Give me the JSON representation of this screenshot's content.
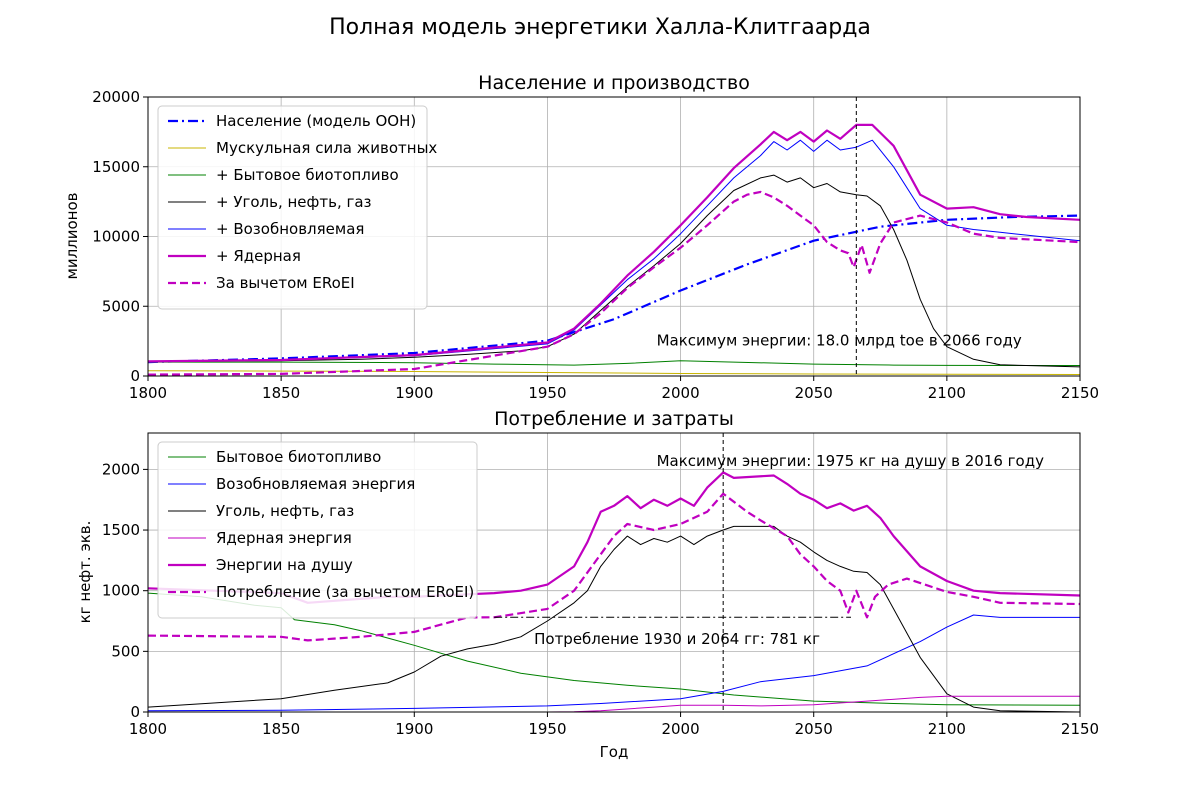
{
  "figure_title": "Полная модель энергетики Халла-Клитгаарда",
  "chart_data": [
    {
      "type": "line",
      "title": "Население и производство",
      "xlabel": "",
      "ylabel": "миллионов",
      "xlim": [
        1800,
        2150
      ],
      "ylim": [
        0,
        20000
      ],
      "xticks": [
        1800,
        1850,
        1900,
        1950,
        2000,
        2050,
        2100,
        2150
      ],
      "yticks": [
        0,
        5000,
        10000,
        15000,
        20000
      ],
      "grid": true,
      "legend_position": "top-left",
      "vline_x": 2066,
      "annotation": {
        "text": "Максимум энергии: 18.0 млрд toe в 2066 году",
        "x": 1991,
        "y": 2200
      },
      "series": [
        {
          "name": "Население (модель ООН)",
          "color": "#0000ff",
          "style": "dashdot",
          "width": 2.2,
          "x": [
            1800,
            1850,
            1900,
            1950,
            1975,
            2000,
            2025,
            2050,
            2075,
            2100,
            2125,
            2150
          ],
          "y": [
            1000,
            1260,
            1650,
            2530,
            4070,
            6130,
            8000,
            9700,
            10700,
            11200,
            11400,
            11500
          ]
        },
        {
          "name": "Мускульная сила животных",
          "color": "#c8b400",
          "style": "solid",
          "width": 1,
          "x": [
            1800,
            1900,
            1950,
            2000,
            2050,
            2100,
            2150
          ],
          "y": [
            380,
            320,
            250,
            180,
            140,
            120,
            110
          ]
        },
        {
          "name": "+ Бытовое биотопливо",
          "color": "#008000",
          "style": "solid",
          "width": 1,
          "x": [
            1800,
            1850,
            1900,
            1930,
            1960,
            1980,
            2000,
            2020,
            2050,
            2080,
            2100,
            2150
          ],
          "y": [
            1000,
            1000,
            950,
            850,
            780,
            900,
            1100,
            1000,
            850,
            780,
            760,
            750
          ]
        },
        {
          "name": "+ Уголь, нефть, газ",
          "color": "#000000",
          "style": "solid",
          "width": 1,
          "x": [
            1800,
            1850,
            1880,
            1900,
            1920,
            1940,
            1950,
            1960,
            1970,
            1980,
            1990,
            2000,
            2010,
            2020,
            2030,
            2035,
            2040,
            2045,
            2050,
            2055,
            2060,
            2066,
            2070,
            2075,
            2080,
            2085,
            2090,
            2095,
            2100,
            2110,
            2120,
            2150
          ],
          "y": [
            1030,
            1100,
            1200,
            1350,
            1550,
            1800,
            2100,
            3000,
            4700,
            6400,
            7900,
            9500,
            11500,
            13300,
            14200,
            14400,
            13900,
            14200,
            13500,
            13800,
            13200,
            13000,
            12900,
            12200,
            10500,
            8300,
            5500,
            3400,
            2100,
            1200,
            800,
            650
          ]
        },
        {
          "name": "+ Возобновляемая",
          "color": "#0000ff",
          "style": "solid",
          "width": 1,
          "x": [
            1800,
            1850,
            1900,
            1950,
            1960,
            1970,
            1980,
            1990,
            2000,
            2010,
            2020,
            2030,
            2035,
            2040,
            2045,
            2050,
            2055,
            2060,
            2066,
            2072,
            2080,
            2090,
            2100,
            2110,
            2120,
            2130,
            2150
          ],
          "y": [
            1050,
            1150,
            1450,
            2300,
            3300,
            5100,
            6900,
            8400,
            10200,
            12200,
            14200,
            15800,
            16800,
            16200,
            16900,
            16100,
            16900,
            16200,
            16400,
            16900,
            15000,
            12000,
            10800,
            10500,
            10300,
            10100,
            9700
          ]
        },
        {
          "name": "+ Ядерная",
          "color": "#c000c0",
          "style": "solid",
          "width": 2.2,
          "x": [
            1800,
            1850,
            1900,
            1950,
            1960,
            1970,
            1980,
            1990,
            2000,
            2010,
            2020,
            2030,
            2035,
            2040,
            2045,
            2050,
            2055,
            2060,
            2066,
            2072,
            2080,
            2090,
            2100,
            2110,
            2120,
            2130,
            2150
          ],
          "y": [
            1050,
            1150,
            1500,
            2400,
            3400,
            5200,
            7200,
            8900,
            10800,
            12800,
            14900,
            16600,
            17500,
            16900,
            17500,
            16800,
            17600,
            17000,
            18000,
            18000,
            16500,
            13000,
            12000,
            12100,
            11600,
            11400,
            11200
          ]
        },
        {
          "name": "За вычетом ERoEI",
          "color": "#c000c0",
          "style": "dashed",
          "width": 2.2,
          "x": [
            1800,
            1850,
            1900,
            1950,
            1960,
            1970,
            1980,
            1990,
            2000,
            2010,
            2020,
            2025,
            2030,
            2035,
            2040,
            2045,
            2050,
            2055,
            2060,
            2063,
            2065,
            2068,
            2071,
            2075,
            2080,
            2090,
            2100,
            2110,
            2120,
            2130,
            2150
          ],
          "y": [
            100,
            150,
            500,
            2100,
            3000,
            4500,
            6300,
            7800,
            9200,
            10800,
            12500,
            13000,
            13200,
            12800,
            12200,
            11500,
            10800,
            9600,
            9000,
            8800,
            7800,
            9400,
            7400,
            9500,
            11000,
            11500,
            11000,
            10200,
            9900,
            9800,
            9600
          ]
        }
      ]
    },
    {
      "type": "line",
      "title": "Потребление и затраты",
      "xlabel": "Год",
      "ylabel": "кг нефт. экв.",
      "xlim": [
        1800,
        2150
      ],
      "ylim": [
        0,
        2300
      ],
      "xticks": [
        1800,
        1850,
        1900,
        1950,
        2000,
        2050,
        2100,
        2150
      ],
      "yticks": [
        0,
        500,
        1000,
        1500,
        2000
      ],
      "grid": true,
      "legend_position": "top-left",
      "vline_x": 2016,
      "hline": {
        "y": 781,
        "x0": 1930,
        "x1": 2064
      },
      "annotation": {
        "text": "Максимум энергии: 1975 кг на душу в 2016 году",
        "x": 1991,
        "y": 2030
      },
      "annotation2": {
        "text": "Потребление 1930 и 2064 гг: 781 кг",
        "x": 1945,
        "y": 560
      },
      "series": [
        {
          "name": "Бытовое биотопливо",
          "color": "#008000",
          "style": "solid",
          "width": 1,
          "x": [
            1800,
            1820,
            1840,
            1850,
            1855,
            1870,
            1880,
            1900,
            1920,
            1940,
            1960,
            1980,
            2000,
            2020,
            2050,
            2080,
            2100,
            2150
          ],
          "y": [
            980,
            950,
            880,
            860,
            760,
            720,
            670,
            550,
            420,
            320,
            260,
            220,
            190,
            140,
            90,
            70,
            60,
            55
          ]
        },
        {
          "name": "Возобновляемая энергия",
          "color": "#0000ff",
          "style": "solid",
          "width": 1,
          "x": [
            1800,
            1850,
            1900,
            1950,
            1970,
            2000,
            2016,
            2030,
            2050,
            2070,
            2090,
            2100,
            2110,
            2120,
            2150
          ],
          "y": [
            10,
            15,
            30,
            50,
            70,
            110,
            170,
            250,
            300,
            380,
            580,
            700,
            800,
            780,
            780
          ]
        },
        {
          "name": "Уголь, нефть, газ",
          "color": "#000000",
          "style": "solid",
          "width": 1,
          "x": [
            1800,
            1850,
            1870,
            1890,
            1900,
            1910,
            1920,
            1930,
            1940,
            1950,
            1960,
            1965,
            1970,
            1975,
            1980,
            1985,
            1990,
            1995,
            2000,
            2005,
            2010,
            2016,
            2020,
            2030,
            2035,
            2040,
            2045,
            2050,
            2055,
            2060,
            2065,
            2070,
            2075,
            2080,
            2090,
            2100,
            2110,
            2120,
            2150
          ],
          "y": [
            40,
            110,
            180,
            240,
            330,
            460,
            520,
            560,
            620,
            750,
            900,
            1000,
            1200,
            1340,
            1450,
            1380,
            1430,
            1400,
            1450,
            1380,
            1450,
            1500,
            1530,
            1530,
            1530,
            1450,
            1400,
            1320,
            1250,
            1200,
            1160,
            1150,
            1050,
            850,
            450,
            150,
            40,
            10,
            0
          ]
        },
        {
          "name": "Ядерная энергия",
          "color": "#c000c0",
          "style": "solid",
          "width": 1,
          "x": [
            1800,
            1950,
            1960,
            1970,
            1990,
            2000,
            2016,
            2030,
            2050,
            2070,
            2090,
            2100,
            2150
          ],
          "y": [
            0,
            0,
            2,
            10,
            40,
            55,
            55,
            50,
            60,
            90,
            120,
            130,
            130
          ]
        },
        {
          "name": "Энергии на душу",
          "color": "#c000c0",
          "style": "solid",
          "width": 2.2,
          "x": [
            1800,
            1850,
            1860,
            1890,
            1900,
            1910,
            1920,
            1930,
            1940,
            1950,
            1960,
            1965,
            1970,
            1975,
            1980,
            1985,
            1990,
            1995,
            2000,
            2005,
            2010,
            2016,
            2020,
            2035,
            2040,
            2045,
            2050,
            2055,
            2060,
            2065,
            2070,
            2075,
            2080,
            2090,
            2100,
            2110,
            2120,
            2150
          ],
          "y": [
            1020,
            980,
            900,
            950,
            950,
            960,
            970,
            980,
            1000,
            1050,
            1200,
            1400,
            1650,
            1700,
            1780,
            1680,
            1750,
            1700,
            1760,
            1700,
            1850,
            1975,
            1930,
            1950,
            1880,
            1800,
            1750,
            1680,
            1720,
            1660,
            1700,
            1600,
            1450,
            1200,
            1080,
            1000,
            980,
            960
          ]
        },
        {
          "name": "Потребление (за вычетом ERoEI)",
          "color": "#c000c0",
          "style": "dashed",
          "width": 2.2,
          "x": [
            1800,
            1850,
            1860,
            1880,
            1900,
            1920,
            1930,
            1950,
            1960,
            1970,
            1975,
            1980,
            1990,
            2000,
            2010,
            2016,
            2025,
            2030,
            2040,
            2045,
            2050,
            2055,
            2060,
            2063,
            2066,
            2070,
            2073,
            2078,
            2085,
            2100,
            2110,
            2120,
            2150
          ],
          "y": [
            630,
            620,
            590,
            620,
            660,
            780,
            781,
            850,
            1000,
            1300,
            1450,
            1550,
            1500,
            1550,
            1650,
            1800,
            1650,
            1580,
            1450,
            1300,
            1200,
            1080,
            1000,
            820,
            1000,
            780,
            950,
            1050,
            1100,
            990,
            950,
            900,
            890
          ]
        }
      ]
    }
  ]
}
